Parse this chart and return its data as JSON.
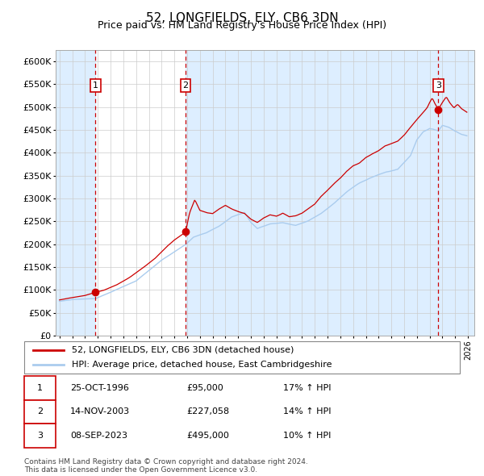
{
  "title": "52, LONGFIELDS, ELY, CB6 3DN",
  "subtitle": "Price paid vs. HM Land Registry's House Price Index (HPI)",
  "title_fontsize": 11,
  "subtitle_fontsize": 9,
  "ylabel_ticks": [
    "£0",
    "£50K",
    "£100K",
    "£150K",
    "£200K",
    "£250K",
    "£300K",
    "£350K",
    "£400K",
    "£450K",
    "£500K",
    "£550K",
    "£600K"
  ],
  "ytick_values": [
    0,
    50000,
    100000,
    150000,
    200000,
    250000,
    300000,
    350000,
    400000,
    450000,
    500000,
    550000,
    600000
  ],
  "ylim": [
    0,
    625000
  ],
  "xlim_start": 1993.7,
  "xlim_end": 2026.5,
  "sale_color": "#cc0000",
  "hpi_color": "#aaccee",
  "background_color": "#ffffff",
  "plot_bg_color": "#ffffff",
  "shade_color": "#ddeeff",
  "grid_color": "#cccccc",
  "vline_color": "#cc0000",
  "purchases": [
    {
      "num": 1,
      "date_x": 1996.82,
      "price": 95000
    },
    {
      "num": 2,
      "date_x": 2003.87,
      "price": 227058
    },
    {
      "num": 3,
      "date_x": 2023.68,
      "price": 495000
    }
  ],
  "legend_entries": [
    "52, LONGFIELDS, ELY, CB6 3DN (detached house)",
    "HPI: Average price, detached house, East Cambridgeshire"
  ],
  "footnote": "Contains HM Land Registry data © Crown copyright and database right 2024.\nThis data is licensed under the Open Government Licence v3.0.",
  "table_rows": [
    [
      "1",
      "25-OCT-1996",
      "£95,000",
      "17% ↑ HPI"
    ],
    [
      "2",
      "14-NOV-2003",
      "£227,058",
      "14% ↑ HPI"
    ],
    [
      "3",
      "08-SEP-2023",
      "£495,000",
      "10% ↑ HPI"
    ]
  ]
}
